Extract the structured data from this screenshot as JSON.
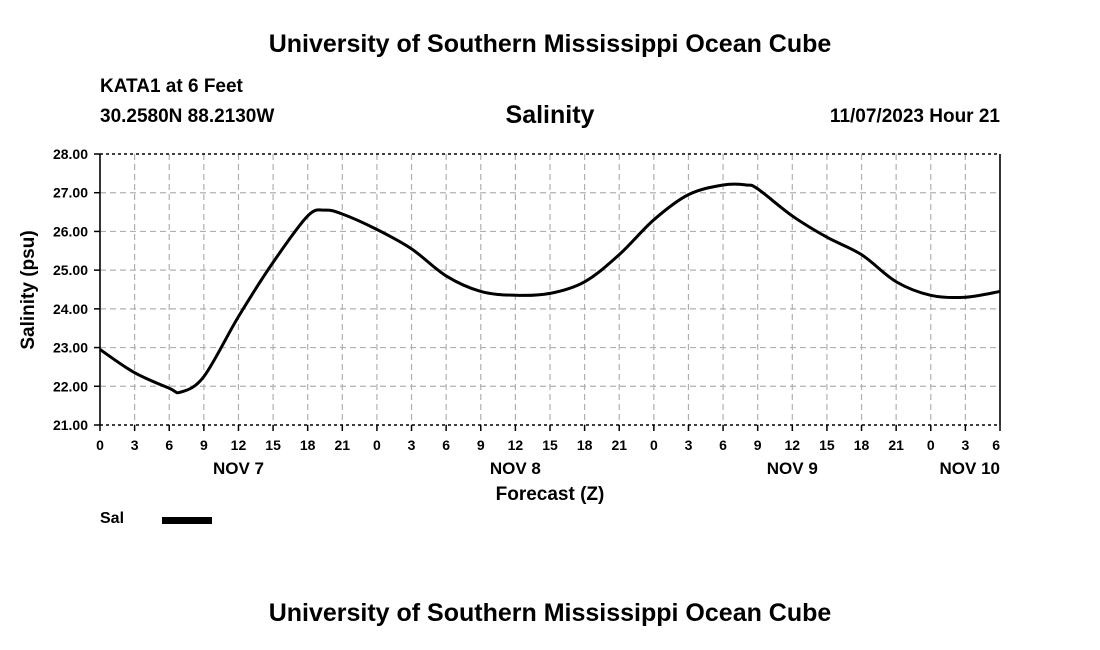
{
  "header": {
    "title": "University of Southern Mississippi Ocean Cube",
    "station": "KATA1 at 6 Feet",
    "coords": "30.2580N  88.2130W",
    "issued": "11/07/2023 Hour 21",
    "footer_title": "University of Southern Mississippi Ocean Cube"
  },
  "legend": {
    "label": "Sal",
    "color": "#000000"
  },
  "chart_data": {
    "type": "line",
    "title": "Salinity",
    "xlabel": "Forecast (Z)",
    "ylabel": "Salinity (psu)",
    "ylim": [
      21.0,
      28.0
    ],
    "xlim": [
      0,
      78
    ],
    "y_ticks": [
      "21.00",
      "22.00",
      "23.00",
      "24.00",
      "25.00",
      "26.00",
      "27.00",
      "28.00"
    ],
    "x_ticks": [
      "0",
      "3",
      "6",
      "9",
      "12",
      "15",
      "18",
      "21",
      "0",
      "3",
      "6",
      "9",
      "12",
      "15",
      "18",
      "21",
      "0",
      "3",
      "6",
      "9",
      "12",
      "15",
      "18",
      "21",
      "0",
      "3",
      "6"
    ],
    "day_labels": [
      {
        "label": "NOV 7",
        "hour": 12
      },
      {
        "label": "NOV 8",
        "hour": 36
      },
      {
        "label": "NOV 9",
        "hour": 60
      },
      {
        "label": "NOV 10",
        "hour": 72
      }
    ],
    "grid": true,
    "series": [
      {
        "name": "Sal",
        "color": "#000000",
        "x": [
          0,
          3,
          6,
          7,
          9,
          12,
          15,
          18,
          19.5,
          21,
          24,
          27,
          30,
          33,
          36,
          39,
          42,
          45,
          48,
          51,
          54,
          56,
          57,
          60,
          63,
          66,
          69,
          72,
          75,
          78
        ],
        "values": [
          22.95,
          22.35,
          21.95,
          21.85,
          22.25,
          23.8,
          25.2,
          26.4,
          26.55,
          26.45,
          26.05,
          25.55,
          24.85,
          24.45,
          24.35,
          24.4,
          24.7,
          25.4,
          26.3,
          26.95,
          27.2,
          27.2,
          27.1,
          26.4,
          25.85,
          25.4,
          24.7,
          24.35,
          24.3,
          24.45
        ]
      }
    ]
  }
}
